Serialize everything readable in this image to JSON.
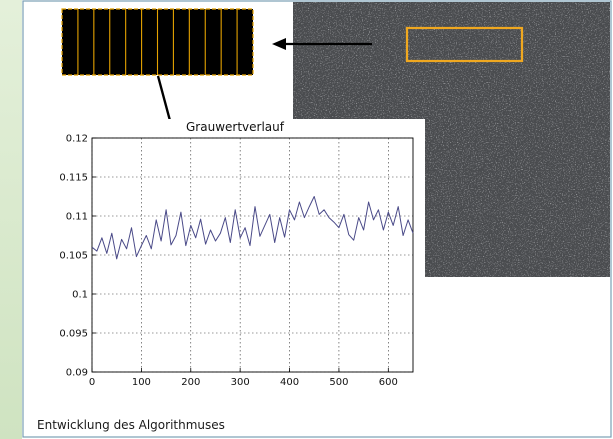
{
  "caption": "Entwicklung des Algorithmuses",
  "colors": {
    "sidebar": "#d5e8c8",
    "border": "#7a9fb5",
    "stripe_outline": "#e5a200",
    "roi": "#f0a820",
    "series_line": "#4a4a88"
  },
  "chart_data": {
    "type": "line",
    "title": "Grauwertverlauf",
    "xlabel": "",
    "ylabel": "",
    "xlim": [
      0,
      650
    ],
    "ylim": [
      0.09,
      0.12
    ],
    "grid": true,
    "x_ticks": [
      "0",
      "100",
      "200",
      "300",
      "400",
      "500",
      "600"
    ],
    "y_ticks": [
      "0.09",
      "0.095",
      "0.1",
      "0.105",
      "0.11",
      "0.115",
      "0.12"
    ],
    "series": [
      {
        "x": [
          0,
          10,
          20,
          30,
          40,
          50,
          60,
          70,
          80,
          90,
          100,
          110,
          120,
          130,
          140,
          150,
          160,
          170,
          180,
          190,
          200,
          210,
          220,
          230,
          240,
          250,
          260,
          270,
          280,
          290,
          300,
          310,
          320,
          330,
          340,
          350,
          360,
          370,
          380,
          390,
          400,
          410,
          420,
          430,
          440,
          450,
          460,
          470,
          480,
          490,
          500,
          510,
          520,
          530,
          540,
          550,
          560,
          570,
          580,
          590,
          600,
          610,
          620,
          630,
          640,
          650
        ],
        "y": [
          0.106,
          0.1055,
          0.1072,
          0.1052,
          0.1078,
          0.1045,
          0.107,
          0.1058,
          0.1085,
          0.1048,
          0.1062,
          0.1075,
          0.1058,
          0.1095,
          0.1068,
          0.1108,
          0.1063,
          0.1075,
          0.1105,
          0.1062,
          0.1088,
          0.1072,
          0.1096,
          0.1064,
          0.1082,
          0.1068,
          0.1078,
          0.1098,
          0.1066,
          0.1108,
          0.1072,
          0.1085,
          0.1062,
          0.1112,
          0.1074,
          0.1088,
          0.1102,
          0.1066,
          0.1098,
          0.1073,
          0.1108,
          0.1095,
          0.1118,
          0.1098,
          0.1112,
          0.1125,
          0.1102,
          0.1108,
          0.1098,
          0.1092,
          0.1085,
          0.1102,
          0.1076,
          0.1069,
          0.1098,
          0.1082,
          0.1118,
          0.1095,
          0.1108,
          0.1082,
          0.1105,
          0.1088,
          0.1112,
          0.1075,
          0.1095,
          0.1078
        ]
      }
    ]
  }
}
